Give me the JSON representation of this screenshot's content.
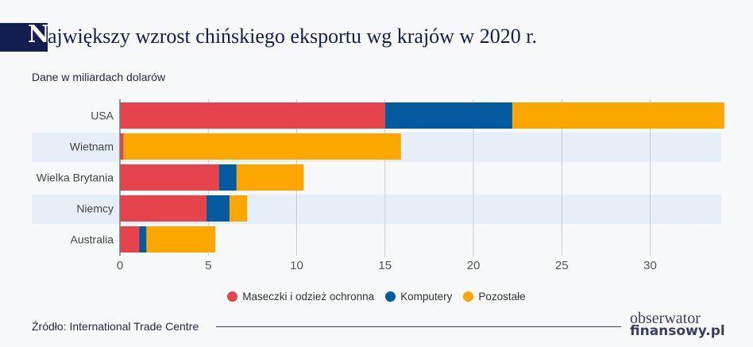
{
  "title_initial": "N",
  "title_rest": "ajwiększy wzrost chińskiego eksportu wg krajów w 2020 r.",
  "subtitle": "Dane w miliardach dolarów",
  "source": "Źródło: International Trade Centre",
  "logo": {
    "line1": "obserwator",
    "line2": "finansowy.pl"
  },
  "chart_data": {
    "type": "bar",
    "orientation": "horizontal",
    "stacked": true,
    "categories": [
      "USA",
      "Wietnam",
      "Wielka Brytania",
      "Niemcy",
      "Australia"
    ],
    "series": [
      {
        "name": "Maseczki i odzież ochronna",
        "color": "#e5444d",
        "values": [
          15.0,
          0.2,
          5.6,
          4.9,
          1.1
        ]
      },
      {
        "name": "Komputery",
        "color": "#035a9e",
        "values": [
          7.2,
          0.0,
          1.0,
          1.3,
          0.4
        ]
      },
      {
        "name": "Pozostałe",
        "color": "#fba700",
        "values": [
          12.0,
          15.7,
          3.8,
          1.0,
          3.9
        ]
      }
    ],
    "xlim": [
      0,
      34
    ],
    "xticks": [
      "0",
      "5",
      "10",
      "15",
      "20",
      "25",
      "30"
    ],
    "grid": true,
    "legend": "bottom"
  }
}
